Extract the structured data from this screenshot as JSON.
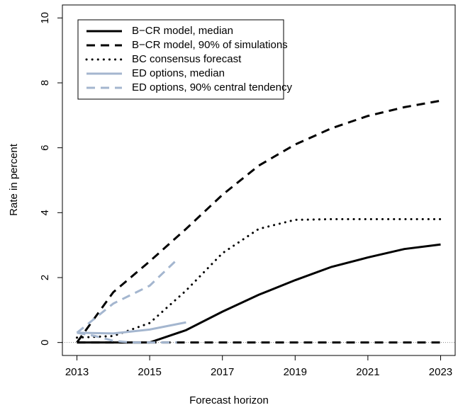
{
  "chart_data": {
    "type": "line",
    "x_label": "Forecast horizon",
    "y_label": "Rate in percent",
    "xlim": [
      2012.6,
      2023.4
    ],
    "ylim": [
      -0.4,
      10.4
    ],
    "xticks": [
      2013,
      2015,
      2017,
      2019,
      2021,
      2023
    ],
    "yticks": [
      0,
      2,
      4,
      6,
      8,
      10
    ],
    "reference_line": 0,
    "legend": "top-left",
    "series": [
      {
        "name": "B−CR model, median",
        "color": "#000000",
        "dash": "solid",
        "x": [
          2013,
          2014,
          2015,
          2016,
          2017,
          2018,
          2019,
          2020,
          2021,
          2022,
          2023
        ],
        "values": [
          0,
          0,
          0,
          0.38,
          0.95,
          1.47,
          1.92,
          2.33,
          2.62,
          2.88,
          3.02
        ]
      },
      {
        "name": "B−CR model, 90% of simulations",
        "color": "#000000",
        "dash": "dashed",
        "x": [
          2013,
          2014,
          2015,
          2016,
          2017,
          2018,
          2019,
          2020,
          2021,
          2022,
          2023
        ],
        "values": [
          0,
          1.55,
          2.5,
          3.5,
          4.55,
          5.45,
          6.1,
          6.6,
          6.98,
          7.25,
          7.45
        ]
      },
      {
        "x": [
          2013,
          2014,
          2015,
          2016,
          2017,
          2018,
          2019,
          2020,
          2021,
          2022,
          2023
        ],
        "color": "#000000",
        "dash": "dashed",
        "values": [
          0,
          0,
          0,
          0,
          0,
          0,
          0,
          0,
          0,
          0,
          0
        ]
      },
      {
        "name": "BC consensus forecast",
        "color": "#000000",
        "dash": "dotted",
        "x": [
          2013,
          2014,
          2015,
          2016,
          2017,
          2018,
          2019,
          2020,
          2021,
          2022,
          2023
        ],
        "values": [
          0.15,
          0.2,
          0.6,
          1.6,
          2.75,
          3.5,
          3.78,
          3.8,
          3.8,
          3.8,
          3.8
        ]
      },
      {
        "name": "ED options, median",
        "color": "#a4b6cf",
        "dash": "solid",
        "x": [
          2013,
          2014,
          2015,
          2016
        ],
        "values": [
          0.3,
          0.28,
          0.4,
          0.62
        ]
      },
      {
        "name": "ED options, 90% central tendency",
        "color": "#a4b6cf",
        "dash": "dashed",
        "x": [
          2013,
          2014,
          2015,
          2015.75
        ],
        "values": [
          0.3,
          1.2,
          1.75,
          2.55
        ]
      },
      {
        "x": [
          2013,
          2013.5,
          2014,
          2014.5,
          2015,
          2015.75
        ],
        "color": "#a4b6cf",
        "dash": "dashed",
        "values": [
          0.3,
          0.2,
          0.05,
          0,
          0,
          0
        ]
      }
    ]
  }
}
